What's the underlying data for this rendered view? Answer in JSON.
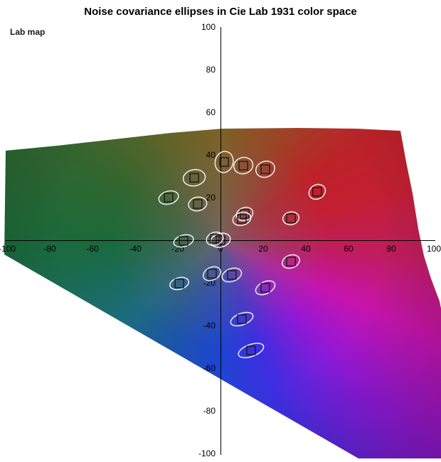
{
  "title": "Noise covariance ellipses in Cie Lab 1931 color space",
  "corner_label": "Lab map",
  "colors": {
    "background": "#ffffff",
    "axis": "#000000",
    "tick_text": "#000000",
    "ellipse_stroke": "#ffffff",
    "square_stroke": "#111111"
  },
  "chart_data": {
    "type": "scatter",
    "title": "Noise covariance ellipses in Cie Lab 1931 color space",
    "xlabel": "",
    "ylabel": "",
    "xlim": [
      -100,
      100
    ],
    "ylim": [
      -100,
      100
    ],
    "grid": false,
    "legend": "none",
    "x_ticks": [
      -100,
      -80,
      -60,
      -40,
      -20,
      0,
      20,
      40,
      60,
      80,
      100
    ],
    "y_ticks": [
      100,
      80,
      60,
      40,
      20,
      -20,
      -40,
      -60,
      -80,
      -100
    ],
    "square_side_units": 4,
    "points": [
      {
        "a": 1.7,
        "b": 36.7,
        "rx": 4.2,
        "ry": 5.0,
        "rot": 15
      },
      {
        "a": 10.7,
        "b": 35.0,
        "rx": 4.5,
        "ry": 3.8,
        "rot": -15
      },
      {
        "a": 21.0,
        "b": 33.3,
        "rx": 4.5,
        "ry": 3.7,
        "rot": -20
      },
      {
        "a": -12.3,
        "b": 29.3,
        "rx": 5.2,
        "ry": 3.8,
        "rot": -10
      },
      {
        "a": 45.3,
        "b": 22.7,
        "rx": 4.0,
        "ry": 3.3,
        "rot": -30
      },
      {
        "a": -24.3,
        "b": 20.0,
        "rx": 4.7,
        "ry": 3.0,
        "rot": -15
      },
      {
        "a": -10.7,
        "b": 17.0,
        "rx": 4.3,
        "ry": 3.2,
        "rot": -10
      },
      {
        "a": 11.3,
        "b": 12.3,
        "rx": 4.0,
        "ry": 3.0,
        "rot": -20
      },
      {
        "a": 10.0,
        "b": 10.0,
        "rx": 4.3,
        "ry": 3.0,
        "rot": -15
      },
      {
        "a": 33.0,
        "b": 10.3,
        "rx": 3.8,
        "ry": 3.0,
        "rot": -10
      },
      {
        "a": -17.3,
        "b": -0.3,
        "rx": 4.7,
        "ry": 2.7,
        "rot": -15
      },
      {
        "a": 0.0,
        "b": 0.0,
        "rx": 4.7,
        "ry": 3.2,
        "rot": -15
      },
      {
        "a": -2.7,
        "b": 0.7,
        "rx": 4.0,
        "ry": 3.0,
        "rot": -20
      },
      {
        "a": 33.0,
        "b": -10.0,
        "rx": 4.2,
        "ry": 3.0,
        "rot": -20
      },
      {
        "a": -4.0,
        "b": -15.7,
        "rx": 4.3,
        "ry": 3.0,
        "rot": -25
      },
      {
        "a": 5.3,
        "b": -16.3,
        "rx": 4.7,
        "ry": 3.0,
        "rot": -20
      },
      {
        "a": -19.3,
        "b": -20.3,
        "rx": 4.5,
        "ry": 2.7,
        "rot": -15
      },
      {
        "a": 21.0,
        "b": -22.3,
        "rx": 4.8,
        "ry": 2.8,
        "rot": -25
      },
      {
        "a": 10.0,
        "b": -37.0,
        "rx": 5.5,
        "ry": 2.7,
        "rot": -20
      },
      {
        "a": 14.3,
        "b": -51.7,
        "rx": 6.2,
        "ry": 2.8,
        "rot": -20
      }
    ]
  }
}
